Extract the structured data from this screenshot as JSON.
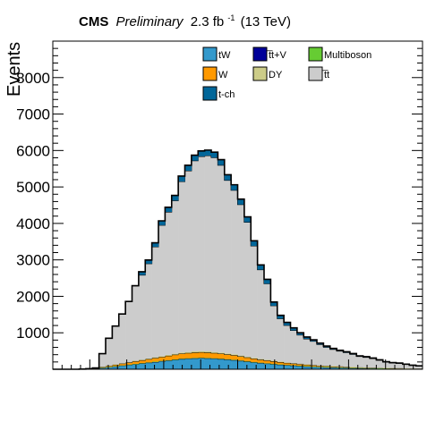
{
  "header": {
    "experiment": "CMS",
    "status": "Preliminary",
    "lumi_value": "2.3 fb",
    "lumi_exponent": "-1",
    "energy": "(13 TeV)"
  },
  "chart_data": {
    "type": "area",
    "stacked": true,
    "ylabel": "Events",
    "xlabel": "",
    "x_tick_labels": [],
    "ylim": [
      0,
      9000
    ],
    "yticks": [
      1000,
      2000,
      3000,
      4000,
      5000,
      6000,
      7000,
      8000
    ],
    "bins": 56,
    "grid": false,
    "legend_position": "top-right",
    "series": [
      {
        "name": "tW",
        "color": "#3399cc",
        "values": [
          0,
          0,
          0,
          0,
          5,
          10,
          20,
          40,
          60,
          80,
          100,
          120,
          140,
          160,
          180,
          200,
          220,
          240,
          260,
          280,
          290,
          300,
          305,
          300,
          290,
          280,
          265,
          250,
          230,
          210,
          190,
          170,
          155,
          140,
          125,
          110,
          100,
          90,
          80,
          70,
          60,
          55,
          50,
          45,
          40,
          35,
          30,
          28,
          25,
          22,
          20,
          18,
          15,
          12,
          10,
          8
        ]
      },
      {
        "name": "t̅t+V",
        "color": "#000099",
        "values": [
          0,
          0,
          0,
          0,
          0,
          0,
          1,
          2,
          2,
          3,
          3,
          4,
          4,
          5,
          5,
          5,
          5,
          6,
          6,
          6,
          6,
          6,
          6,
          6,
          6,
          6,
          6,
          6,
          5,
          5,
          5,
          5,
          5,
          5,
          4,
          4,
          4,
          4,
          3,
          3,
          3,
          3,
          3,
          3,
          2,
          2,
          2,
          2,
          2,
          2,
          2,
          2,
          2,
          2,
          2,
          2
        ]
      },
      {
        "name": "Multiboson",
        "color": "#66cc33",
        "values": [
          0,
          0,
          0,
          0,
          0,
          0,
          1,
          1,
          2,
          2,
          2,
          3,
          3,
          3,
          4,
          4,
          4,
          4,
          5,
          5,
          5,
          5,
          5,
          5,
          5,
          5,
          5,
          5,
          5,
          4,
          4,
          4,
          4,
          4,
          4,
          4,
          3,
          3,
          3,
          3,
          3,
          3,
          3,
          3,
          3,
          2,
          2,
          2,
          2,
          2,
          2,
          2,
          2,
          2,
          2,
          2
        ]
      },
      {
        "name": "W",
        "color": "#ff9900",
        "values": [
          0,
          0,
          0,
          0,
          0,
          5,
          10,
          20,
          30,
          40,
          50,
          60,
          70,
          80,
          90,
          100,
          110,
          120,
          130,
          140,
          145,
          150,
          152,
          150,
          145,
          140,
          132,
          125,
          115,
          105,
          95,
          85,
          78,
          70,
          63,
          56,
          50,
          45,
          40,
          35,
          30,
          28,
          25,
          23,
          20,
          18,
          15,
          14,
          12,
          11,
          10,
          9,
          8,
          6,
          5,
          4
        ]
      },
      {
        "name": "DY",
        "color": "#cccc88",
        "values": [
          0,
          0,
          0,
          0,
          0,
          0,
          3,
          5,
          7,
          9,
          10,
          12,
          14,
          16,
          18,
          20,
          22,
          24,
          26,
          28,
          29,
          30,
          30,
          30,
          29,
          28,
          27,
          25,
          23,
          21,
          19,
          17,
          15,
          14,
          13,
          11,
          10,
          9,
          8,
          7,
          6,
          6,
          5,
          5,
          4,
          4,
          3,
          3,
          3,
          2,
          2,
          2,
          2,
          2,
          2,
          2
        ]
      },
      {
        "name": "t̅t",
        "color": "#cccccc",
        "values": [
          0,
          0,
          0,
          0,
          0,
          0,
          0,
          360,
          750,
          1050,
          1350,
          1660,
          2060,
          2320,
          2600,
          3030,
          3590,
          3920,
          4200,
          4690,
          4970,
          5230,
          5340,
          5370,
          5330,
          5140,
          4750,
          4500,
          4140,
          3690,
          3070,
          2450,
          2090,
          1510,
          1180,
          1020,
          900,
          790,
          700,
          650,
          580,
          510,
          460,
          420,
          390,
          350,
          300,
          280,
          250,
          210,
          160,
          140,
          130,
          110,
          85,
          70
        ]
      },
      {
        "name": "t-ch",
        "color": "#006699",
        "values": [
          0,
          0,
          0,
          0,
          0,
          0,
          0,
          0,
          0,
          0,
          0,
          0,
          0,
          90,
          100,
          110,
          120,
          130,
          140,
          150,
          150,
          150,
          150,
          150,
          150,
          150,
          150,
          150,
          150,
          145,
          140,
          130,
          120,
          100,
          90,
          80,
          70,
          60,
          50,
          40,
          35,
          30,
          25,
          20,
          20,
          20,
          15,
          15,
          15,
          10,
          10,
          10,
          10,
          5,
          5,
          5
        ]
      }
    ]
  }
}
